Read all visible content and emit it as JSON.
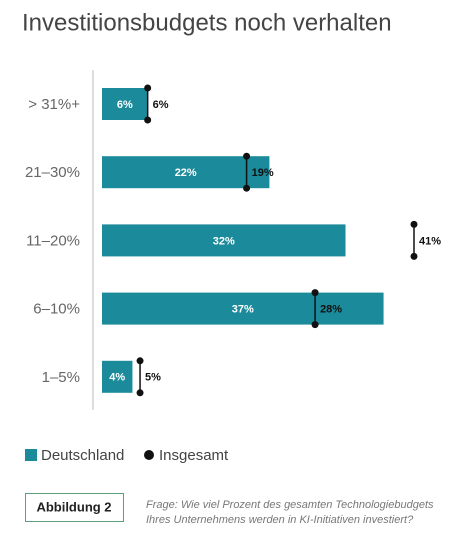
{
  "chart_data": {
    "type": "bar-marker",
    "title": "Investitionsbudgets noch verhalten",
    "categories": [
      "> 31%+",
      "21–30%",
      "11–20%",
      "6–10%",
      "1–5%"
    ],
    "series": [
      {
        "name": "Deutschland",
        "color": "#1b8a9a",
        "values": [
          6,
          22,
          32,
          37,
          4
        ],
        "value_labels": [
          "6%",
          "22%",
          "32%",
          "37%",
          "4%"
        ]
      },
      {
        "name": "Insgesamt",
        "color": "#111111",
        "values": [
          6,
          19,
          41,
          28,
          5
        ],
        "value_labels": [
          "6%",
          "19%",
          "41%",
          "28%",
          "5%"
        ]
      }
    ],
    "figure_label": "Abbildung 2",
    "note": "Frage: Wie viel Prozent des gesamten Technologiebudgets Ihres Unternehmens werden in KI-Initiativen investiert?"
  }
}
